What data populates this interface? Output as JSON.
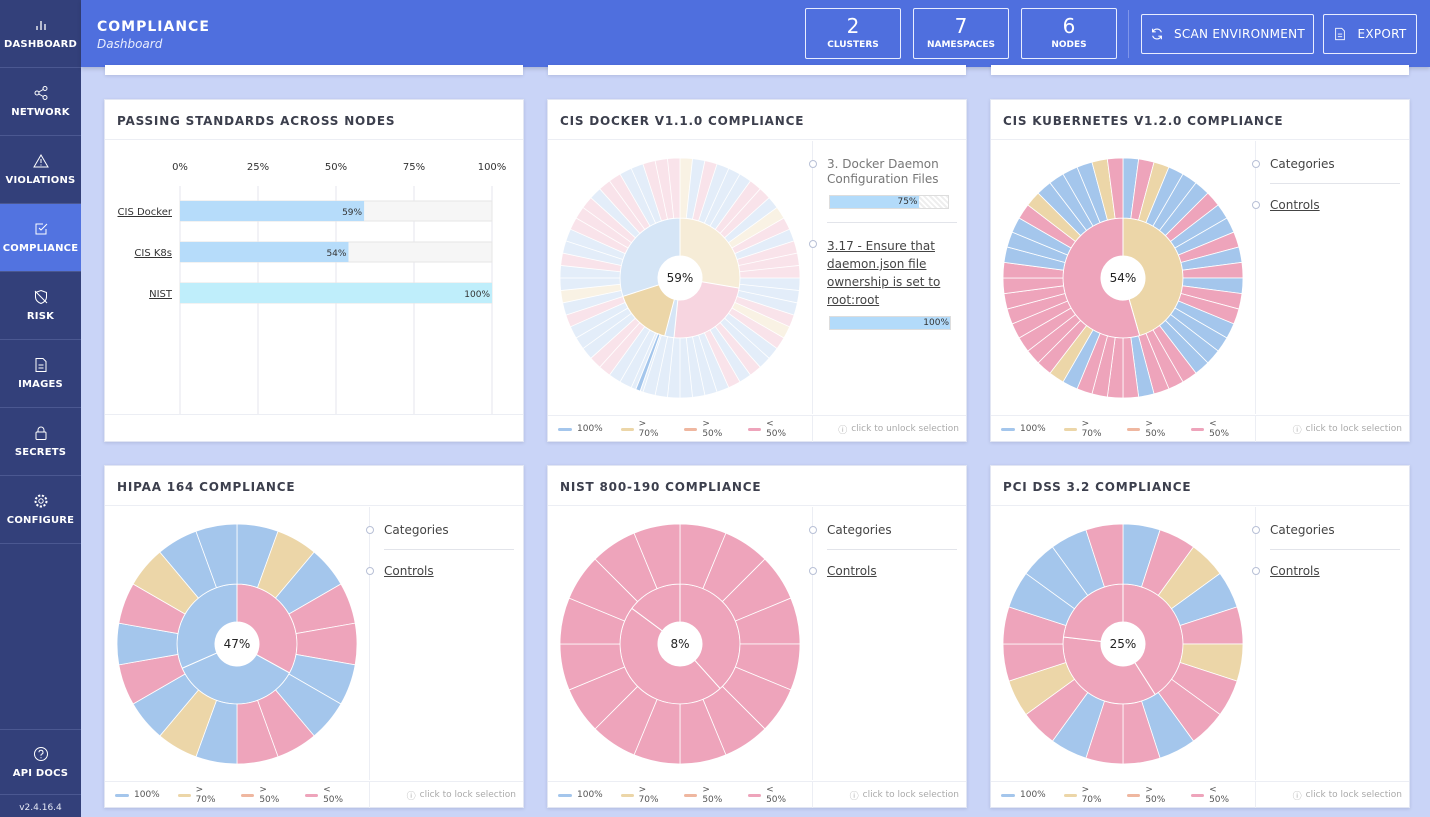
{
  "nav": {
    "items": [
      {
        "label": "DASHBOARD",
        "icon": "dashboard-icon"
      },
      {
        "label": "NETWORK",
        "icon": "network-icon"
      },
      {
        "label": "VIOLATIONS",
        "icon": "violations-icon"
      },
      {
        "label": "COMPLIANCE",
        "icon": "compliance-icon"
      },
      {
        "label": "RISK",
        "icon": "risk-icon"
      },
      {
        "label": "IMAGES",
        "icon": "images-icon"
      },
      {
        "label": "SECRETS",
        "icon": "secrets-icon"
      },
      {
        "label": "CONFIGURE",
        "icon": "configure-icon"
      }
    ],
    "api_docs": "API DOCS",
    "version": "v2.4.16.4"
  },
  "header": {
    "title": "COMPLIANCE",
    "subtitle": "Dashboard",
    "stats": [
      {
        "value": "2",
        "label": "CLUSTERS"
      },
      {
        "value": "7",
        "label": "NAMESPACES"
      },
      {
        "value": "6",
        "label": "NODES"
      }
    ],
    "scan_label": "SCAN ENVIRONMENT",
    "export_label": "EXPORT"
  },
  "colors": {
    "blue": "#a4c6ec",
    "yellow": "#ecd6a8",
    "orange": "#efb7a0",
    "pink": "#eea4bb"
  },
  "legend": {
    "l100": "100%",
    "l70": "> 70%",
    "l50": "> 50%",
    "l0": "< 50%"
  },
  "passing": {
    "title": "PASSING STANDARDS ACROSS NODES",
    "chart_data": {
      "type": "bar",
      "categories": [
        "CIS Docker",
        "CIS K8s",
        "NIST"
      ],
      "values": [
        59,
        54,
        100
      ],
      "value_labels": [
        "59%",
        "54%",
        "100%"
      ],
      "xlim": [
        0,
        100
      ],
      "ticks": [
        "0%",
        "25%",
        "50%",
        "75%",
        "100%"
      ]
    }
  },
  "docker": {
    "title": "CIS DOCKER V1.1.0 COMPLIANCE",
    "center": "59%",
    "item1": "3. Docker Daemon Configuration Files",
    "item1_value": 75,
    "item1_pct": "75%",
    "item2": "3.17 - Ensure that daemon.json file ownership is set to root:root",
    "item2_value": 100,
    "item2_pct": "100%",
    "lock": "click to unlock selection",
    "chart_data": {
      "type": "pie",
      "center_value": 59
    }
  },
  "k8s": {
    "title": "CIS KUBERNETES V1.2.0 COMPLIANCE",
    "center": "54%",
    "categories": "Categories",
    "controls": "Controls",
    "lock": "click to lock selection",
    "chart_data": {
      "type": "pie",
      "center_value": 54
    }
  },
  "hipaa": {
    "title": "HIPAA 164 COMPLIANCE",
    "center": "47%",
    "categories": "Categories",
    "controls": "Controls",
    "lock": "click to lock selection",
    "chart_data": {
      "type": "pie",
      "center_value": 47
    }
  },
  "nist": {
    "title": "NIST 800-190 COMPLIANCE",
    "center": "8%",
    "categories": "Categories",
    "controls": "Controls",
    "lock": "click to lock selection",
    "chart_data": {
      "type": "pie",
      "center_value": 8
    }
  },
  "pci": {
    "title": "PCI DSS 3.2 COMPLIANCE",
    "center": "25%",
    "categories": "Categories",
    "controls": "Controls",
    "lock": "click to lock selection",
    "chart_data": {
      "type": "pie",
      "center_value": 25
    }
  }
}
